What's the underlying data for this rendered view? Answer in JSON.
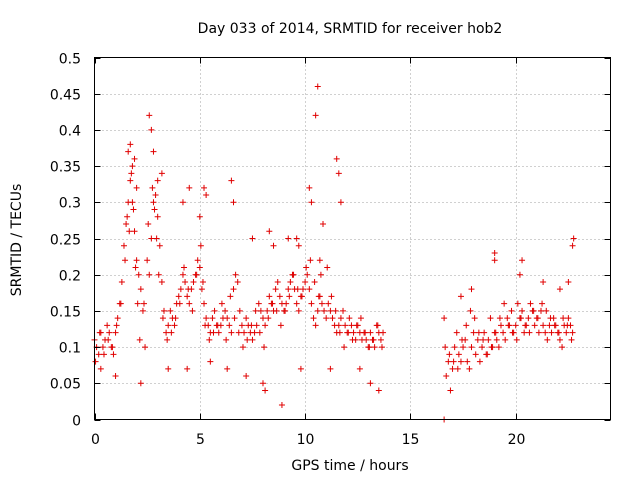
{
  "chart_data": {
    "type": "scatter",
    "title": "Day 033 of 2014, SRMTID for receiver hob2",
    "xlabel": "GPS time / hours",
    "ylabel": "SRMTID / TECUs",
    "xlim": [
      0,
      24.5
    ],
    "ylim": [
      0,
      0.5
    ],
    "xticks": [
      0,
      5,
      10,
      15,
      20
    ],
    "yticks": [
      0,
      0.05,
      0.1,
      0.15,
      0.2,
      0.25,
      0.3,
      0.35,
      0.4,
      0.45,
      0.5
    ],
    "xtick_labels": [
      "0",
      "5",
      "10",
      "15",
      "20"
    ],
    "ytick_labels": [
      "0",
      "0.05",
      "0.1",
      "0.15",
      "0.2",
      "0.25",
      "0.3",
      "0.35",
      "0.4",
      "0.45",
      "0.5"
    ],
    "grid": true,
    "marker": "+",
    "color": "#e00000",
    "series": [
      {
        "name": "hob2",
        "x": [
          0.0,
          0.1,
          0.2,
          0.3,
          0.4,
          0.5,
          0.6,
          0.7,
          0.8,
          0.9,
          1.0,
          1.1,
          1.2,
          1.3,
          1.4,
          1.5,
          1.6,
          1.7,
          1.8,
          1.9,
          2.0,
          2.1,
          2.2,
          2.3,
          2.4,
          2.5,
          2.6,
          2.7,
          2.8,
          2.9,
          3.0,
          3.1,
          3.2,
          3.3,
          3.4,
          3.5,
          3.6,
          3.7,
          3.8,
          3.9,
          4.0,
          4.1,
          4.2,
          4.3,
          4.4,
          4.5,
          4.6,
          4.7,
          4.8,
          4.9,
          5.0,
          5.1,
          5.2,
          5.3,
          5.4,
          5.5,
          5.6,
          5.7,
          5.8,
          5.9,
          6.0,
          6.1,
          6.2,
          6.3,
          6.4,
          6.5,
          6.6,
          6.7,
          6.8,
          6.9,
          7.0,
          7.1,
          7.2,
          7.3,
          7.4,
          7.5,
          7.6,
          7.7,
          7.8,
          7.9,
          8.0,
          8.1,
          8.2,
          8.3,
          8.4,
          8.5,
          8.6,
          8.7,
          8.8,
          8.9,
          9.0,
          9.1,
          9.2,
          9.3,
          9.4,
          9.5,
          9.6,
          9.7,
          9.8,
          9.9,
          10.0,
          10.1,
          10.2,
          10.3,
          10.4,
          10.5,
          10.6,
          10.7,
          10.8,
          10.9,
          11.0,
          11.1,
          11.2,
          11.3,
          11.4,
          11.5,
          11.6,
          11.7,
          11.8,
          11.9,
          12.0,
          12.1,
          12.2,
          12.3,
          12.4,
          12.5,
          12.6,
          12.7,
          12.8,
          12.9,
          13.0,
          13.1,
          13.2,
          13.3,
          13.4,
          13.5,
          13.6,
          13.7,
          0.05,
          0.25,
          0.45,
          0.65,
          0.85,
          1.05,
          1.25,
          1.45,
          1.55,
          1.65,
          1.75,
          1.85,
          1.95,
          2.05,
          2.15,
          2.35,
          2.55,
          2.75,
          2.85,
          2.95,
          3.05,
          3.25,
          3.45,
          3.65,
          3.85,
          4.05,
          4.25,
          4.45,
          4.65,
          4.85,
          5.05,
          5.15,
          5.25,
          5.45,
          5.65,
          5.85,
          6.05,
          6.25,
          6.45,
          6.65,
          6.85,
          7.05,
          7.25,
          7.45,
          7.65,
          7.85,
          8.05,
          8.25,
          8.45,
          8.65,
          8.85,
          9.05,
          9.25,
          9.45,
          9.65,
          9.85,
          10.05,
          10.25,
          10.45,
          10.65,
          10.75,
          10.85,
          11.05,
          11.25,
          11.45,
          11.65,
          11.85,
          12.05,
          12.25,
          12.45,
          12.65,
          12.85,
          13.05,
          13.25,
          13.45,
          13.65,
          1.6,
          1.7,
          1.8,
          1.9,
          2.0,
          2.6,
          2.7,
          2.8,
          3.0,
          3.2,
          4.2,
          4.5,
          5.0,
          5.2,
          5.3,
          6.5,
          6.6,
          7.5,
          8.3,
          8.5,
          9.2,
          9.6,
          9.7,
          10.2,
          10.3,
          10.5,
          10.6,
          10.7,
          11.5,
          11.6,
          11.7,
          0.3,
          1.0,
          2.2,
          3.5,
          4.4,
          5.5,
          6.3,
          7.2,
          8.0,
          8.1,
          8.9,
          9.8,
          11.2,
          12.6,
          13.1,
          13.5,
          16.6,
          16.7,
          16.8,
          16.9,
          17.0,
          17.1,
          17.2,
          17.3,
          17.4,
          17.5,
          17.6,
          17.7,
          17.8,
          17.9,
          18.0,
          18.1,
          18.2,
          18.3,
          18.4,
          18.5,
          18.6,
          18.7,
          18.8,
          18.9,
          19.0,
          19.1,
          19.2,
          19.3,
          19.4,
          19.5,
          19.6,
          19.7,
          19.8,
          19.9,
          20.0,
          20.1,
          20.2,
          20.3,
          20.4,
          20.5,
          20.6,
          20.7,
          20.8,
          20.9,
          21.0,
          21.1,
          21.2,
          21.3,
          21.4,
          21.5,
          21.6,
          21.7,
          21.8,
          21.9,
          22.0,
          22.1,
          22.2,
          22.3,
          22.4,
          22.5,
          22.6,
          22.7,
          16.65,
          16.85,
          17.05,
          17.25,
          17.45,
          17.65,
          17.85,
          18.05,
          18.25,
          18.45,
          18.65,
          18.85,
          19.05,
          19.25,
          19.45,
          19.65,
          19.85,
          20.05,
          20.25,
          20.45,
          20.65,
          20.85,
          21.05,
          21.25,
          21.45,
          21.65,
          21.85,
          22.05,
          22.25,
          22.45,
          22.65,
          16.6,
          17.4,
          17.9,
          19.0,
          19.0,
          20.2,
          20.3,
          21.3,
          22.1,
          22.5,
          22.7,
          22.75
        ],
        "y": [
          0.11,
          0.1,
          0.09,
          0.12,
          0.1,
          0.11,
          0.13,
          0.12,
          0.1,
          0.09,
          0.12,
          0.14,
          0.16,
          0.19,
          0.24,
          0.27,
          0.3,
          0.33,
          0.3,
          0.26,
          0.22,
          0.2,
          0.18,
          0.15,
          0.1,
          0.22,
          0.2,
          0.25,
          0.3,
          0.31,
          0.28,
          0.24,
          0.19,
          0.15,
          0.12,
          0.13,
          0.15,
          0.14,
          0.13,
          0.16,
          0.17,
          0.18,
          0.2,
          0.19,
          0.17,
          0.16,
          0.18,
          0.19,
          0.2,
          0.22,
          0.21,
          0.18,
          0.16,
          0.14,
          0.13,
          0.12,
          0.14,
          0.15,
          0.13,
          0.12,
          0.13,
          0.14,
          0.15,
          0.14,
          0.13,
          0.12,
          0.18,
          0.2,
          0.19,
          0.15,
          0.13,
          0.12,
          0.14,
          0.13,
          0.12,
          0.11,
          0.12,
          0.13,
          0.16,
          0.15,
          0.14,
          0.13,
          0.15,
          0.17,
          0.16,
          0.15,
          0.18,
          0.19,
          0.17,
          0.16,
          0.15,
          0.16,
          0.18,
          0.19,
          0.2,
          0.18,
          0.16,
          0.15,
          0.17,
          0.18,
          0.19,
          0.2,
          0.18,
          0.16,
          0.14,
          0.13,
          0.15,
          0.17,
          0.16,
          0.15,
          0.14,
          0.16,
          0.15,
          0.14,
          0.13,
          0.12,
          0.13,
          0.14,
          0.15,
          0.13,
          0.12,
          0.14,
          0.13,
          0.12,
          0.11,
          0.13,
          0.12,
          0.11,
          0.12,
          0.11,
          0.1,
          0.12,
          0.11,
          0.1,
          0.13,
          0.12,
          0.11,
          0.12,
          0.08,
          0.12,
          0.09,
          0.11,
          0.1,
          0.13,
          0.16,
          0.22,
          0.28,
          0.26,
          0.34,
          0.29,
          0.21,
          0.16,
          0.11,
          0.16,
          0.27,
          0.32,
          0.29,
          0.25,
          0.2,
          0.14,
          0.11,
          0.12,
          0.14,
          0.16,
          0.21,
          0.18,
          0.15,
          0.2,
          0.24,
          0.19,
          0.13,
          0.11,
          0.12,
          0.13,
          0.16,
          0.11,
          0.17,
          0.14,
          0.12,
          0.1,
          0.11,
          0.13,
          0.15,
          0.12,
          0.1,
          0.14,
          0.16,
          0.15,
          0.13,
          0.15,
          0.17,
          0.2,
          0.18,
          0.17,
          0.21,
          0.22,
          0.19,
          0.17,
          0.2,
          0.27,
          0.21,
          0.17,
          0.15,
          0.12,
          0.1,
          0.12,
          0.11,
          0.13,
          0.14,
          0.12,
          0.1,
          0.11,
          0.13,
          0.1,
          0.37,
          0.38,
          0.35,
          0.36,
          0.32,
          0.42,
          0.4,
          0.37,
          0.33,
          0.34,
          0.3,
          0.32,
          0.28,
          0.32,
          0.31,
          0.33,
          0.3,
          0.25,
          0.26,
          0.24,
          0.25,
          0.25,
          0.24,
          0.32,
          0.3,
          0.42,
          0.46,
          0.22,
          0.36,
          0.34,
          0.3,
          0.07,
          0.06,
          0.05,
          0.07,
          0.07,
          0.08,
          0.07,
          0.06,
          0.05,
          0.04,
          0.02,
          0.07,
          0.07,
          0.07,
          0.05,
          0.04,
          0.0,
          0.06,
          0.08,
          0.04,
          0.07,
          0.1,
          0.12,
          0.09,
          0.08,
          0.1,
          0.11,
          0.08,
          0.07,
          0.1,
          0.12,
          0.09,
          0.11,
          0.08,
          0.1,
          0.12,
          0.09,
          0.11,
          0.14,
          0.1,
          0.12,
          0.11,
          0.1,
          0.13,
          0.12,
          0.11,
          0.14,
          0.13,
          0.15,
          0.12,
          0.13,
          0.16,
          0.14,
          0.15,
          0.12,
          0.13,
          0.14,
          0.16,
          0.15,
          0.13,
          0.14,
          0.12,
          0.15,
          0.13,
          0.12,
          0.11,
          0.13,
          0.12,
          0.14,
          0.13,
          0.12,
          0.11,
          0.1,
          0.13,
          0.12,
          0.14,
          0.13,
          0.12,
          0.1,
          0.09,
          0.08,
          0.07,
          0.11,
          0.13,
          0.15,
          0.14,
          0.12,
          0.11,
          0.09,
          0.1,
          0.12,
          0.14,
          0.16,
          0.13,
          0.12,
          0.11,
          0.14,
          0.13,
          0.12,
          0.15,
          0.14,
          0.16,
          0.15,
          0.14,
          0.13,
          0.12,
          0.14,
          0.13,
          0.11,
          0.14,
          0.17,
          0.18,
          0.23,
          0.22,
          0.2,
          0.22,
          0.19,
          0.18,
          0.19,
          0.24,
          0.25
        ]
      }
    ]
  }
}
